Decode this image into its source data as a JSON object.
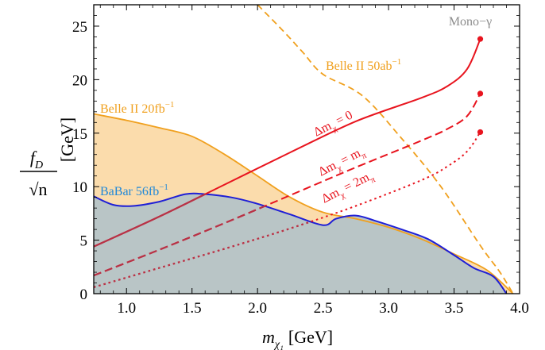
{
  "chart_data": {
    "type": "area",
    "title": "Mono−γ",
    "xlabel": "m",
    "xlabel_sub": "χ₁",
    "xlabel_unit": "[GeV]",
    "ylabel_num": "f",
    "ylabel_num_sub": "D",
    "ylabel_den": "√n",
    "ylabel_unit": "[GeV]",
    "xlim": [
      0.75,
      4.0
    ],
    "ylim": [
      0,
      27
    ],
    "x_ticks": [
      1.0,
      1.5,
      2.0,
      2.5,
      3.0,
      3.5,
      4.0
    ],
    "x_tick_labels": [
      "1.0",
      "1.5",
      "2.0",
      "2.5",
      "3.0",
      "3.5",
      "4.0"
    ],
    "y_ticks": [
      0,
      5,
      10,
      15,
      20,
      25
    ],
    "y_tick_labels": [
      "0",
      "5",
      "10",
      "15",
      "20",
      "25"
    ],
    "grid": false,
    "colors": {
      "belle20_fill": "#fbdcac",
      "belle20_line": "#f0a01e",
      "babar_fill": "#b9c5c6",
      "babar_line": "#1f1fd6",
      "belle50_line": "#f0a01e",
      "red": "#e8141e",
      "overlap_red": "#b83246",
      "title_gray": "#8c8c8c"
    },
    "series": [
      {
        "name": "Belle II 20fb",
        "label_sup": "−1",
        "style": "filled",
        "x": [
          0.75,
          1.0,
          1.25,
          1.5,
          1.75,
          2.0,
          2.25,
          2.5,
          2.75,
          3.0,
          3.25,
          3.5,
          3.75,
          3.95
        ],
        "y": [
          16.8,
          16.2,
          15.5,
          14.7,
          13.0,
          11.0,
          9.0,
          7.6,
          7.0,
          6.2,
          5.1,
          3.7,
          2.2,
          0.0
        ]
      },
      {
        "name": "BaBar 56fb",
        "label_sup": "−1",
        "style": "filled",
        "x": [
          0.75,
          0.9,
          1.05,
          1.25,
          1.45,
          1.6,
          1.8,
          2.0,
          2.25,
          2.5,
          2.6,
          2.75,
          2.9,
          3.1,
          3.3,
          3.5,
          3.65,
          3.8,
          3.9
        ],
        "y": [
          9.1,
          8.3,
          8.2,
          8.6,
          9.3,
          9.3,
          9.0,
          8.4,
          7.4,
          6.4,
          7.0,
          7.3,
          6.8,
          6.0,
          5.1,
          3.6,
          2.4,
          1.6,
          0.0
        ]
      },
      {
        "name": "Belle II 50ab",
        "label_sup": "−1",
        "style": "dashed",
        "x": [
          2.0,
          2.2,
          2.35,
          2.5,
          2.8,
          3.1,
          3.4,
          3.7,
          3.85,
          3.95
        ],
        "y": [
          27.0,
          24.5,
          22.5,
          20.5,
          18.5,
          14.5,
          10.0,
          4.5,
          2.0,
          0.0
        ]
      },
      {
        "name": "Δm_χ = 0",
        "label_sub": "χ",
        "label_tail": " = 0",
        "style": "solid",
        "x": [
          0.75,
          1.25,
          1.75,
          2.25,
          2.75,
          3.25,
          3.45,
          3.6,
          3.7
        ],
        "y": [
          4.4,
          7.2,
          10.2,
          13.2,
          16.1,
          18.3,
          19.4,
          21.0,
          23.8
        ],
        "endpoint": [
          3.7,
          23.8
        ]
      },
      {
        "name": "Δm_χ = m_π",
        "label_sub": "χ",
        "label_tail": " = m",
        "label_tail_sub": "π",
        "style": "dashed",
        "x": [
          0.75,
          1.25,
          1.75,
          2.25,
          2.75,
          3.25,
          3.45,
          3.6,
          3.7
        ],
        "y": [
          1.7,
          4.1,
          6.6,
          9.2,
          11.8,
          14.3,
          15.4,
          16.6,
          18.7
        ],
        "endpoint": [
          3.7,
          18.7
        ]
      },
      {
        "name": "Δm_χ = 2m_π",
        "label_sub": "χ",
        "label_tail": " = 2m",
        "label_tail_sub": "π",
        "style": "dotted",
        "x": [
          0.75,
          1.25,
          1.75,
          2.25,
          2.75,
          3.25,
          3.45,
          3.6,
          3.7
        ],
        "y": [
          0.6,
          2.4,
          4.2,
          6.1,
          8.2,
          10.6,
          11.9,
          13.3,
          15.1
        ],
        "endpoint": [
          3.7,
          15.1
        ]
      }
    ]
  }
}
